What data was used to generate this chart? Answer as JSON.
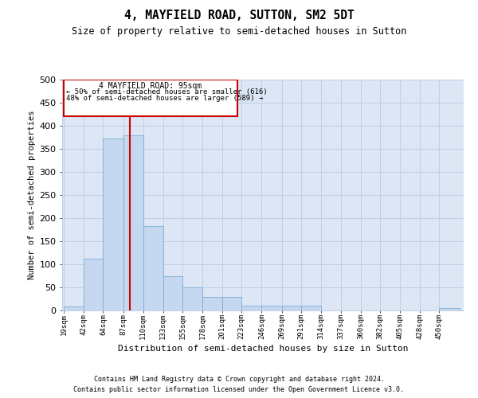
{
  "title": "4, MAYFIELD ROAD, SUTTON, SM2 5DT",
  "subtitle": "Size of property relative to semi-detached houses in Sutton",
  "xlabel": "Distribution of semi-detached houses by size in Sutton",
  "ylabel": "Number of semi-detached properties",
  "bar_color": "#c5d8f0",
  "bar_edge_color": "#7bafd4",
  "background_color": "#ffffff",
  "axes_bg_color": "#dce6f5",
  "grid_color": "#bfcfe8",
  "property_line_color": "#cc0000",
  "annotation_box_color": "#cc0000",
  "property_value": 95,
  "annotation_title": "4 MAYFIELD ROAD: 95sqm",
  "annotation_line1": "← 50% of semi-detached houses are smaller (616)",
  "annotation_line2": "48% of semi-detached houses are larger (589) →",
  "bins": [
    19,
    42,
    64,
    87,
    110,
    133,
    155,
    178,
    201,
    223,
    246,
    269,
    291,
    314,
    337,
    360,
    382,
    405,
    428,
    450,
    473
  ],
  "counts": [
    8,
    112,
    373,
    380,
    183,
    75,
    50,
    30,
    30,
    10,
    10,
    10,
    10,
    0,
    0,
    0,
    0,
    0,
    0,
    5
  ],
  "ylim": [
    0,
    500
  ],
  "yticks": [
    0,
    50,
    100,
    150,
    200,
    250,
    300,
    350,
    400,
    450,
    500
  ],
  "footnote1": "Contains HM Land Registry data © Crown copyright and database right 2024.",
  "footnote2": "Contains public sector information licensed under the Open Government Licence v3.0."
}
